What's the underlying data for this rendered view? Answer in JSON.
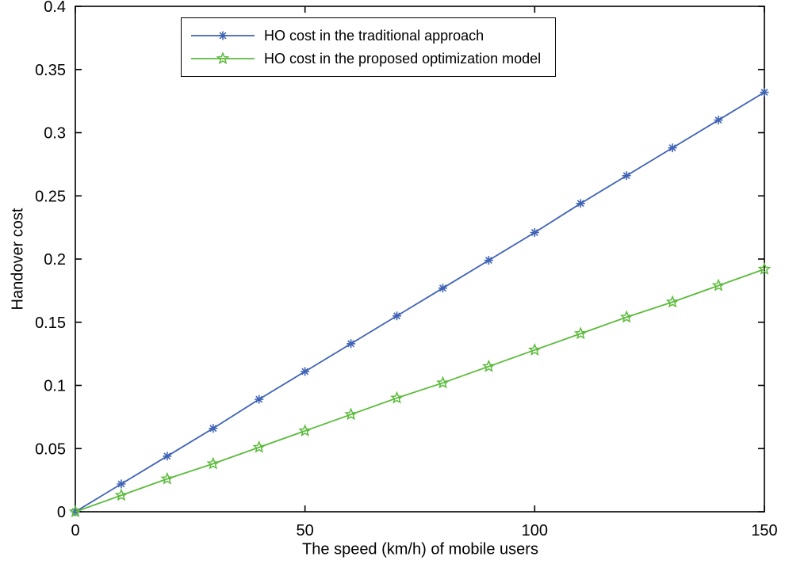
{
  "chart_data": {
    "type": "line",
    "title": "",
    "xlabel": "The speed (km/h) of mobile users",
    "ylabel": "Handover cost",
    "xlim": [
      0,
      150
    ],
    "ylim": [
      0,
      0.4
    ],
    "xticks": [
      0,
      50,
      100,
      150
    ],
    "yticks": [
      0,
      0.05,
      0.1,
      0.15,
      0.2,
      0.25,
      0.3,
      0.35,
      0.4
    ],
    "grid": false,
    "legend_position": "top-center-inside",
    "axis_color": "#000000",
    "background_color": "#ffffff",
    "x": [
      0,
      10,
      20,
      30,
      40,
      50,
      60,
      70,
      80,
      90,
      100,
      110,
      120,
      130,
      140,
      150
    ],
    "series": [
      {
        "name": "HO cost in the traditional approach",
        "color": "#3F63B5",
        "marker": "asterisk",
        "values": [
          0,
          0.022,
          0.044,
          0.066,
          0.089,
          0.111,
          0.133,
          0.155,
          0.177,
          0.199,
          0.221,
          0.244,
          0.266,
          0.288,
          0.31,
          0.332
        ]
      },
      {
        "name": "HO cost in the proposed optimization model",
        "color": "#5CBA3C",
        "marker": "star",
        "values": [
          0,
          0.013,
          0.026,
          0.038,
          0.051,
          0.064,
          0.077,
          0.09,
          0.102,
          0.115,
          0.128,
          0.141,
          0.154,
          0.166,
          0.179,
          0.192
        ]
      }
    ]
  }
}
